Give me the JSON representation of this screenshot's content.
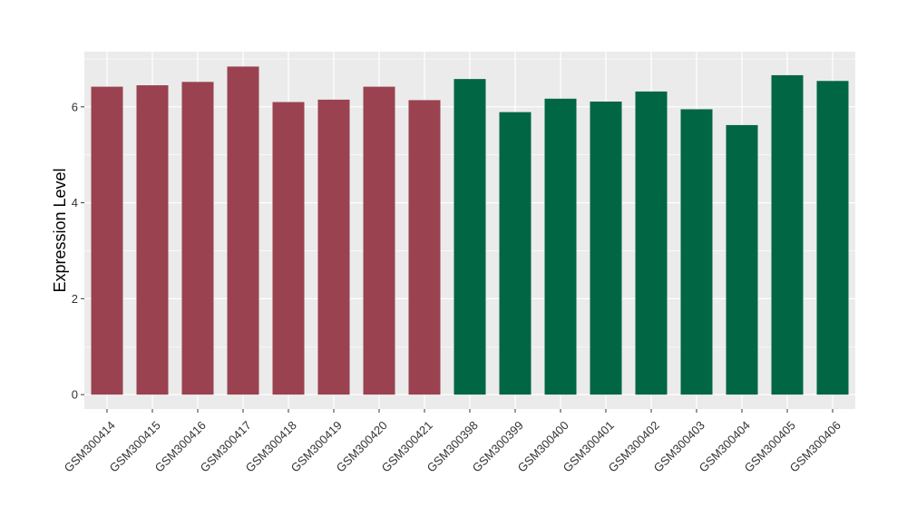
{
  "chart_data": {
    "type": "bar",
    "title": "",
    "xlabel": "",
    "ylabel": "Expression Level",
    "ylim": [
      -0.3,
      7.15
    ],
    "yticks": [
      0,
      2,
      4,
      6
    ],
    "grid": true,
    "legend": "none",
    "categories": [
      "GSM300414",
      "GSM300415",
      "GSM300416",
      "GSM300417",
      "GSM300418",
      "GSM300419",
      "GSM300420",
      "GSM300421",
      "GSM300398",
      "GSM300399",
      "GSM300400",
      "GSM300401",
      "GSM300402",
      "GSM300403",
      "GSM300404",
      "GSM300405",
      "GSM300406"
    ],
    "values": [
      6.42,
      6.45,
      6.52,
      6.84,
      6.1,
      6.15,
      6.42,
      6.14,
      6.58,
      5.89,
      6.17,
      6.11,
      6.32,
      5.95,
      5.62,
      6.66,
      6.54
    ],
    "bar_colors": [
      "#9a4250",
      "#9a4250",
      "#9a4250",
      "#9a4250",
      "#9a4250",
      "#9a4250",
      "#9a4250",
      "#9a4250",
      "#006644",
      "#006644",
      "#006644",
      "#006644",
      "#006644",
      "#006644",
      "#006644",
      "#006644",
      "#006644"
    ],
    "panel_background": "#ebebeb",
    "gridline_color": "#ffffff"
  }
}
